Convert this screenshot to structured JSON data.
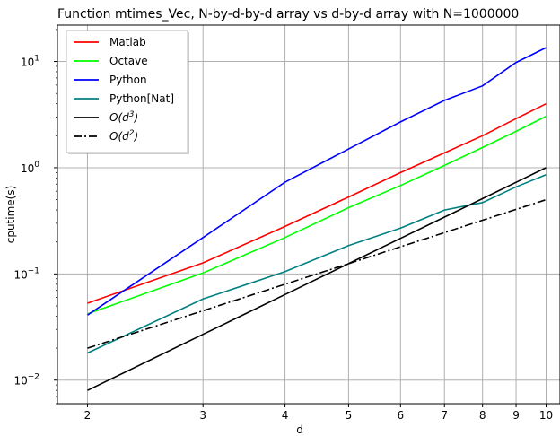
{
  "chart_data": {
    "type": "line",
    "title": "Function mtimes_Vec, N-by-d-by-d array vs d-by-d array with N=1000000",
    "xlabel": "d",
    "ylabel": "cputime(s)",
    "xscale": "log",
    "yscale": "log",
    "xlim": [
      1.8,
      10.5
    ],
    "ylim": [
      0.006,
      22
    ],
    "xticks": [
      2,
      3,
      4,
      5,
      6,
      7,
      8,
      9,
      10
    ],
    "xtick_labels": [
      "2",
      "3",
      "4",
      "5",
      "6",
      "7",
      "8",
      "9",
      "10"
    ],
    "yticks": [
      0.01,
      0.1,
      1,
      10
    ],
    "ytick_labels": [
      "10",
      "10",
      "10",
      "10"
    ],
    "ytick_exponents": [
      "−2",
      "−1",
      "0",
      "1"
    ],
    "grid": true,
    "legend_position": "top-left",
    "x": [
      2,
      3,
      4,
      5,
      6,
      7,
      8,
      9,
      10
    ],
    "series": [
      {
        "name": "Matlab",
        "color": "#ff0000",
        "dash": "solid",
        "values": [
          0.053,
          0.127,
          0.28,
          0.53,
          0.9,
          1.38,
          2.0,
          2.9,
          4.0
        ]
      },
      {
        "name": "Octave",
        "color": "#00ff00",
        "dash": "solid",
        "values": [
          0.042,
          0.102,
          0.22,
          0.42,
          0.68,
          1.05,
          1.55,
          2.2,
          3.05
        ]
      },
      {
        "name": "Python",
        "color": "#0000ff",
        "dash": "solid",
        "values": [
          0.041,
          0.22,
          0.73,
          1.5,
          2.7,
          4.3,
          5.9,
          9.8,
          13.5
        ]
      },
      {
        "name": "Python[Nat]",
        "color": "#008080",
        "dash": "solid",
        "values": [
          0.018,
          0.058,
          0.105,
          0.185,
          0.27,
          0.4,
          0.47,
          0.66,
          0.86
        ]
      },
      {
        "name": "O(d",
        "exponent": "3",
        "suffix": ")",
        "color": "#000000",
        "dash": "solid",
        "values": [
          0.008,
          0.027,
          0.064,
          0.125,
          0.216,
          0.343,
          0.512,
          0.729,
          1.0
        ]
      },
      {
        "name": "O(d",
        "exponent": "2",
        "suffix": ")",
        "color": "#000000",
        "dash": "dashdot",
        "values": [
          0.02,
          0.045,
          0.08,
          0.125,
          0.18,
          0.245,
          0.32,
          0.405,
          0.5
        ]
      }
    ]
  }
}
